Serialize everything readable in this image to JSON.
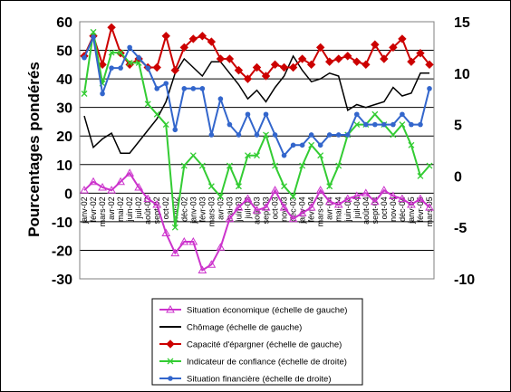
{
  "chart_data": {
    "type": "line",
    "title": "",
    "ylabel_left": "Pourcentages pondérés",
    "ylim_left": [
      -30,
      60
    ],
    "yticks_left": [
      "-30",
      "-20",
      "-10",
      "0",
      "10",
      "20",
      "30",
      "40",
      "50",
      "60"
    ],
    "ylim_right": [
      -10,
      15
    ],
    "yticks_right": [
      "-10",
      "-5",
      "0",
      "5",
      "10",
      "15"
    ],
    "categories": [
      "janv-02",
      "févr-02",
      "mars-02",
      "avr-02",
      "mai-02",
      "juin-02",
      "juil-02",
      "août-02",
      "sept-02",
      "oct-02",
      "nov-02",
      "déc-02",
      "janv-03",
      "févr-03",
      "mars-03",
      "avr-03",
      "mai-03",
      "juin-03",
      "juil-03",
      "août-03",
      "sept-03",
      "oct-03",
      "nov-03",
      "déc-03",
      "janv-04",
      "févr-04",
      "mars-04",
      "avr-04",
      "mai-04",
      "juin-04",
      "juil-04",
      "août-04",
      "sept-04",
      "oct-04",
      "nov-04",
      "déc-04",
      "janv-05",
      "févr-05",
      "mars-05"
    ],
    "xtick_labels": [
      "janv-02",
      "févr-02",
      "mars-02",
      "avr-02",
      "mai-02",
      "juin-02",
      "juil-02",
      "août-02",
      "sept-02",
      "oct-02",
      "nov-02",
      "déc-02",
      "janv-03",
      "févr-03",
      "mars-03",
      "avr-03",
      "mai-03",
      "juin-03",
      "juil-03",
      "août-03",
      "sept-03",
      "oct-03",
      "nov-03",
      "déc-03",
      "janv-04",
      "févr-04",
      "mars-04",
      "avr-04",
      "mai-04",
      "juin-04",
      "juil-04",
      "août-04",
      "sept-04",
      "oct-04",
      "nov-04",
      "déc-04",
      "janv-05",
      "févr-05",
      "mars-05"
    ],
    "grid": "horizontal",
    "legend_position": "bottom",
    "series": [
      {
        "name": "Situation économique (échelle de gauche)",
        "axis": "left",
        "color": "#cc33cc",
        "marker": "triangle-open",
        "values": [
          1,
          4,
          2,
          1,
          4,
          7,
          2,
          -2,
          -4,
          -14,
          -21,
          -17,
          -17,
          -27,
          -25,
          -19,
          -9,
          -5,
          -2,
          -6,
          -5,
          1,
          -5,
          -9,
          -7,
          -5,
          1,
          -3,
          -4,
          -2,
          -1,
          0,
          -3,
          1,
          -1,
          -2,
          -4,
          -2,
          -5
        ]
      },
      {
        "name": "Chômage (échelle de gauche)",
        "axis": "left",
        "color": "#000000",
        "marker": "none",
        "values": [
          27,
          16,
          19,
          21,
          14,
          14,
          18,
          22,
          26,
          32,
          42,
          47,
          44,
          41,
          46,
          46,
          42,
          38,
          33,
          36,
          32,
          37,
          41,
          48,
          43,
          39,
          40,
          42,
          41,
          29,
          31,
          30,
          31,
          32,
          37,
          34,
          35,
          42,
          42
        ]
      },
      {
        "name": "Capacité d'épargner (échelle de gauche)",
        "axis": "left",
        "color": "#cc0000",
        "marker": "diamond-filled",
        "values": [
          48,
          55,
          45,
          58,
          49,
          45,
          47,
          44,
          44,
          55,
          43,
          51,
          54,
          55,
          53,
          47,
          47,
          43,
          40,
          44,
          41,
          45,
          44,
          44,
          47,
          45,
          51,
          46,
          47,
          48,
          46,
          45,
          52,
          47,
          51,
          54,
          46,
          49,
          45
        ]
      },
      {
        "name": "Indicateur de confiance (échelle de droite)",
        "axis": "right",
        "color": "#33cc33",
        "marker": "x",
        "values": [
          8,
          14,
          9,
          12,
          12,
          11,
          11,
          7,
          6,
          5,
          -5,
          1,
          2,
          1,
          -1,
          -2,
          1,
          -1,
          2,
          2,
          4,
          1,
          -1,
          -2,
          1,
          3,
          2,
          -1,
          1,
          4,
          5,
          5,
          6,
          5,
          4,
          5,
          3,
          0,
          1
        ]
      },
      {
        "name": "Situation financière (échelle de droite)",
        "axis": "right",
        "color": "#3366cc",
        "marker": "dot",
        "values": [
          11.5,
          13.5,
          8,
          10.5,
          10.5,
          12.5,
          11.5,
          10.5,
          8.5,
          9,
          4.5,
          8.5,
          8.5,
          8.5,
          4,
          7.5,
          5,
          4,
          6,
          4,
          6,
          4,
          2,
          3,
          3,
          4,
          3,
          4,
          4,
          4,
          6,
          5,
          5,
          5,
          5,
          6,
          5,
          5,
          8.5
        ]
      }
    ]
  }
}
